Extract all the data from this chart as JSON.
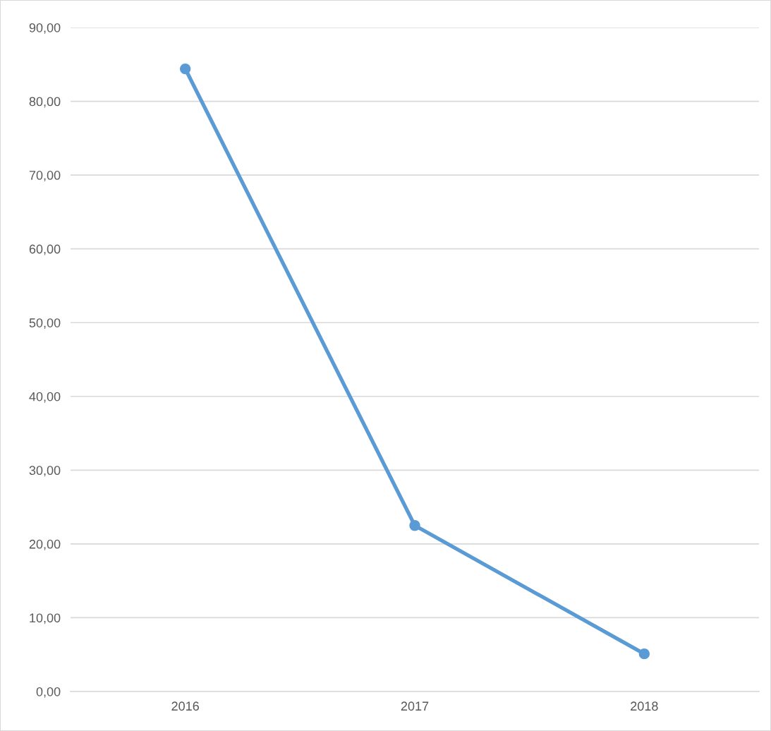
{
  "chart_data": {
    "type": "line",
    "categories": [
      "2016",
      "2017",
      "2018"
    ],
    "series": [
      {
        "color": "#5b9bd5",
        "values": [
          84.4,
          22.5,
          5.1
        ]
      }
    ],
    "ylim": [
      0,
      90
    ],
    "yticks": [
      {
        "value": 0,
        "label": "0,00"
      },
      {
        "value": 10,
        "label": "10,00"
      },
      {
        "value": 20,
        "label": "20,00"
      },
      {
        "value": 30,
        "label": "30,00"
      },
      {
        "value": 40,
        "label": "40,00"
      },
      {
        "value": 50,
        "label": "50,00"
      },
      {
        "value": 60,
        "label": "60,00"
      },
      {
        "value": 70,
        "label": "70,00"
      },
      {
        "value": 80,
        "label": "80,00"
      },
      {
        "value": 90,
        "label": "90,00"
      }
    ],
    "grid": "y",
    "marker": "circle",
    "line_style": "solid"
  }
}
